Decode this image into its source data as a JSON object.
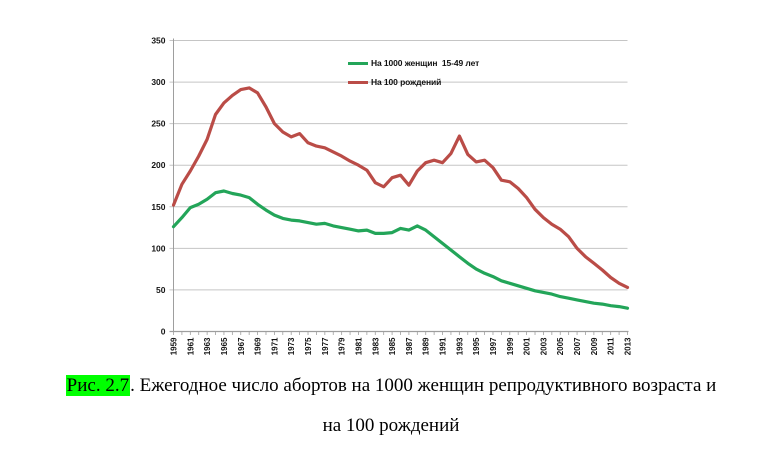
{
  "page": {
    "background": "#ffffff"
  },
  "chart_data": {
    "type": "line",
    "title": "",
    "xlabel": "",
    "ylabel": "",
    "x": [
      1959,
      1960,
      1961,
      1962,
      1963,
      1964,
      1965,
      1966,
      1967,
      1968,
      1969,
      1970,
      1971,
      1972,
      1973,
      1974,
      1975,
      1976,
      1977,
      1978,
      1979,
      1980,
      1981,
      1982,
      1983,
      1984,
      1985,
      1986,
      1987,
      1988,
      1989,
      1990,
      1991,
      1992,
      1993,
      1994,
      1995,
      1996,
      1997,
      1998,
      1999,
      2000,
      2001,
      2002,
      2003,
      2004,
      2005,
      2006,
      2007,
      2008,
      2009,
      2010,
      2011,
      2012,
      2013
    ],
    "x_tick_labels": [
      "1959",
      "1961",
      "1963",
      "1965",
      "1967",
      "1969",
      "1971",
      "1973",
      "1975",
      "1977",
      "1979",
      "1981",
      "1983",
      "1985",
      "1987",
      "1989",
      "1991",
      "1993",
      "1995",
      "1997",
      "1999",
      "2001",
      "2003",
      "2005",
      "2007",
      "2009",
      "2011",
      "2013"
    ],
    "x_label_interval": 2,
    "ylim": [
      0,
      350
    ],
    "y_ticks": [
      0,
      50,
      100,
      150,
      200,
      250,
      300,
      350
    ],
    "grid": true,
    "legend_position": "top-center-inside",
    "series": [
      {
        "name": "На 1000 женщин  15-49 лет",
        "color": "#23A559",
        "values": [
          126,
          137,
          149,
          153,
          159,
          167,
          169,
          166,
          164,
          161,
          153,
          146,
          140,
          136,
          134,
          133,
          131,
          129,
          130,
          127,
          125,
          123,
          121,
          122,
          118,
          118,
          119,
          124,
          122,
          127,
          122,
          114,
          106,
          98,
          90,
          82,
          75,
          70,
          66,
          61,
          58,
          55,
          52,
          49,
          47,
          45,
          42,
          40,
          38,
          36,
          34,
          33,
          31,
          30,
          28
        ]
      },
      {
        "name": "На 100 рождений",
        "color": "#BA4C47",
        "values": [
          152,
          177,
          193,
          211,
          231,
          261,
          275,
          284,
          291,
          293,
          287,
          270,
          250,
          240,
          234,
          238,
          227,
          223,
          221,
          216,
          211,
          205,
          200,
          194,
          179,
          174,
          185,
          188,
          176,
          193,
          203,
          206,
          203,
          214,
          235,
          213,
          204,
          206,
          197,
          182,
          180,
          172,
          161,
          147,
          137,
          129,
          123,
          114,
          100,
          90,
          82,
          74,
          65,
          58,
          53
        ]
      }
    ],
    "style": {
      "gridline_color": "#C5C5C5",
      "axis_color": "#9E9E9E",
      "line_width": 3.2
    }
  },
  "caption": {
    "label": "Рис. 2.7",
    "label_highlight_color": "#00FF00",
    "line1_after_label": ". Ежегодное число абортов на 1000 женщин репродуктивного возраста и",
    "line2": "на 100 рождений"
  }
}
